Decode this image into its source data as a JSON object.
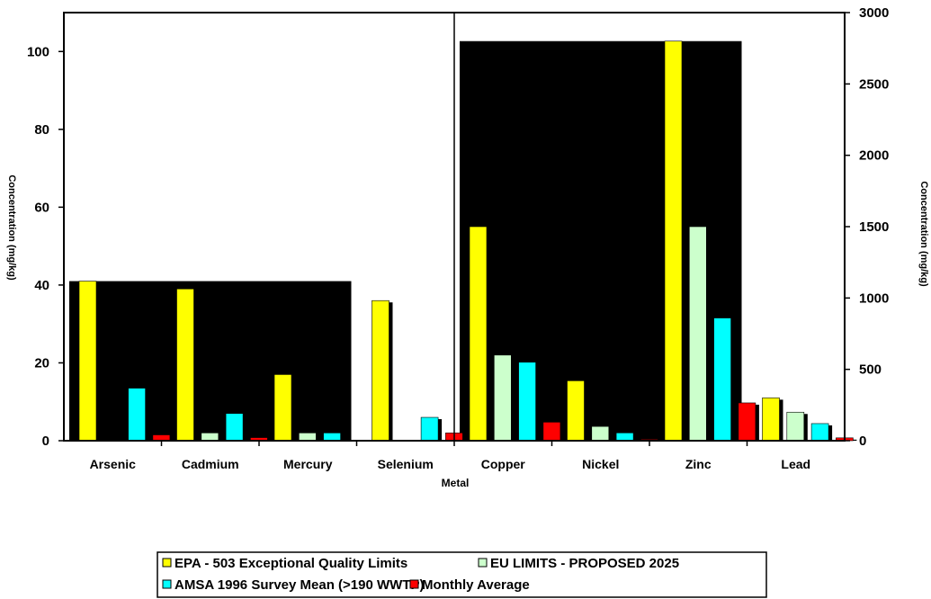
{
  "chart_data": {
    "type": "bar",
    "xlabel": "Metal",
    "ylabel_left": "Concentration (mg/kg)",
    "ylabel_right": "Concentration (mg/kg)",
    "left_axis": {
      "ylim": [
        0,
        110
      ],
      "ticks": [
        "0",
        "20",
        "40",
        "60",
        "80",
        "100"
      ]
    },
    "right_axis": {
      "ylim": [
        0,
        3000
      ],
      "ticks": [
        "0",
        "500",
        "1000",
        "1500",
        "2000",
        "2500",
        "3000"
      ]
    },
    "grid": false,
    "legend_position": "bottom",
    "groups": [
      {
        "axis": "left",
        "categories": [
          "Arsenic",
          "Cadmium",
          "Mercury",
          "Selenium"
        ]
      },
      {
        "axis": "right",
        "categories": [
          "Copper",
          "Nickel",
          "Zinc",
          "Lead"
        ]
      }
    ],
    "series": [
      {
        "name": "EPA - 503 Exceptional Quality Limits",
        "color": "#ffff00",
        "values": [
          41,
          39,
          17,
          36,
          1500,
          420,
          2800,
          300
        ]
      },
      {
        "name": "EU LIMITS - PROPOSED 2025",
        "color": "#ccffcc",
        "values": [
          0,
          2,
          2,
          0,
          600,
          100,
          1500,
          200
        ]
      },
      {
        "name": "AMSA 1996 Survey Mean (>190 WWTP)",
        "color": "#00ffff",
        "values": [
          13.5,
          7,
          2,
          6,
          550,
          55,
          860,
          120
        ]
      },
      {
        "name": "Monthly Average",
        "color": "#ff0000",
        "values": [
          1.5,
          0.8,
          0,
          2,
          130,
          10,
          265,
          20
        ]
      }
    ]
  }
}
